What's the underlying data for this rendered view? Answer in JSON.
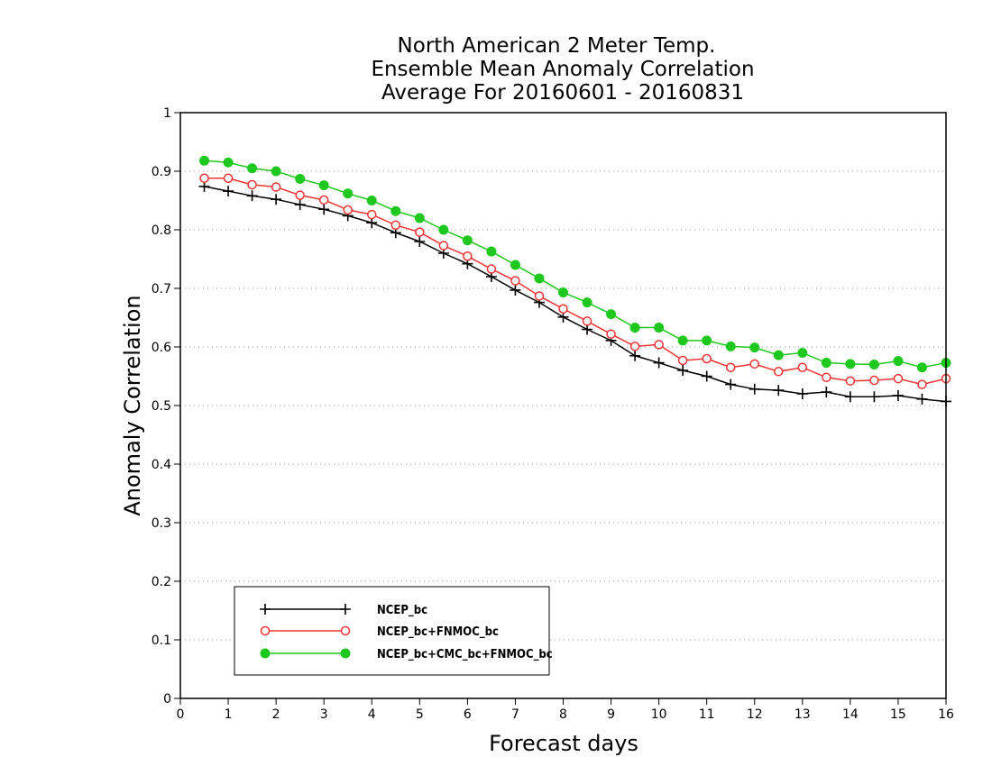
{
  "chart_data": {
    "type": "line",
    "title_lines": [
      "North American 2 Meter Temp.",
      "Ensemble Mean Anomaly Correlation",
      "Average For 20160601 - 20160831"
    ],
    "xlabel": "Forecast days",
    "ylabel": "Anomaly Correlation",
    "xlim": [
      0,
      16
    ],
    "ylim": [
      0,
      1
    ],
    "x_ticks": [
      0,
      1,
      2,
      3,
      4,
      5,
      6,
      7,
      8,
      9,
      10,
      11,
      12,
      13,
      14,
      15,
      16
    ],
    "y_ticks": [
      0,
      0.1,
      0.2,
      0.3,
      0.4,
      0.5,
      0.6,
      0.7,
      0.8,
      0.9,
      1
    ],
    "y_tick_labels": [
      "0",
      "0.1",
      "0.2",
      "0.3",
      "0.4",
      "0.5",
      "0.6",
      "0.7",
      "0.8",
      "0.9",
      "1"
    ],
    "grid": "horizontal dotted",
    "legend_position": "bottom-left",
    "x": [
      0.5,
      1,
      1.5,
      2,
      2.5,
      3,
      3.5,
      4,
      4.5,
      5,
      5.5,
      6,
      6.5,
      7,
      7.5,
      8,
      8.5,
      9,
      9.5,
      10,
      10.5,
      11,
      11.5,
      12,
      12.5,
      13,
      13.5,
      14,
      14.5,
      15,
      15.5,
      16
    ],
    "series": [
      {
        "name": "NCEP_bc",
        "color": "#000000",
        "marker": "plus",
        "values": [
          0.874,
          0.866,
          0.858,
          0.852,
          0.843,
          0.835,
          0.824,
          0.812,
          0.795,
          0.78,
          0.76,
          0.742,
          0.72,
          0.697,
          0.676,
          0.651,
          0.63,
          0.611,
          0.585,
          0.573,
          0.56,
          0.55,
          0.536,
          0.528,
          0.526,
          0.52,
          0.523,
          0.515,
          0.515,
          0.517,
          0.511,
          0.507
        ]
      },
      {
        "name": "NCEP_bc+FNMOC_bc",
        "color": "#ee3333",
        "marker": "open-circle",
        "values": [
          0.888,
          0.888,
          0.877,
          0.873,
          0.859,
          0.851,
          0.834,
          0.826,
          0.808,
          0.796,
          0.773,
          0.755,
          0.733,
          0.713,
          0.687,
          0.665,
          0.644,
          0.622,
          0.601,
          0.604,
          0.577,
          0.58,
          0.565,
          0.571,
          0.558,
          0.565,
          0.548,
          0.542,
          0.543,
          0.546,
          0.536,
          0.546
        ]
      },
      {
        "name": "NCEP_bc+CMC_bc+FNMOC_bc",
        "color": "#1ec81e",
        "marker": "filled-circle",
        "values": [
          0.918,
          0.915,
          0.905,
          0.9,
          0.887,
          0.876,
          0.862,
          0.85,
          0.832,
          0.82,
          0.8,
          0.782,
          0.763,
          0.74,
          0.717,
          0.693,
          0.676,
          0.656,
          0.633,
          0.633,
          0.611,
          0.611,
          0.601,
          0.599,
          0.586,
          0.59,
          0.573,
          0.571,
          0.57,
          0.576,
          0.565,
          0.573
        ]
      }
    ]
  }
}
